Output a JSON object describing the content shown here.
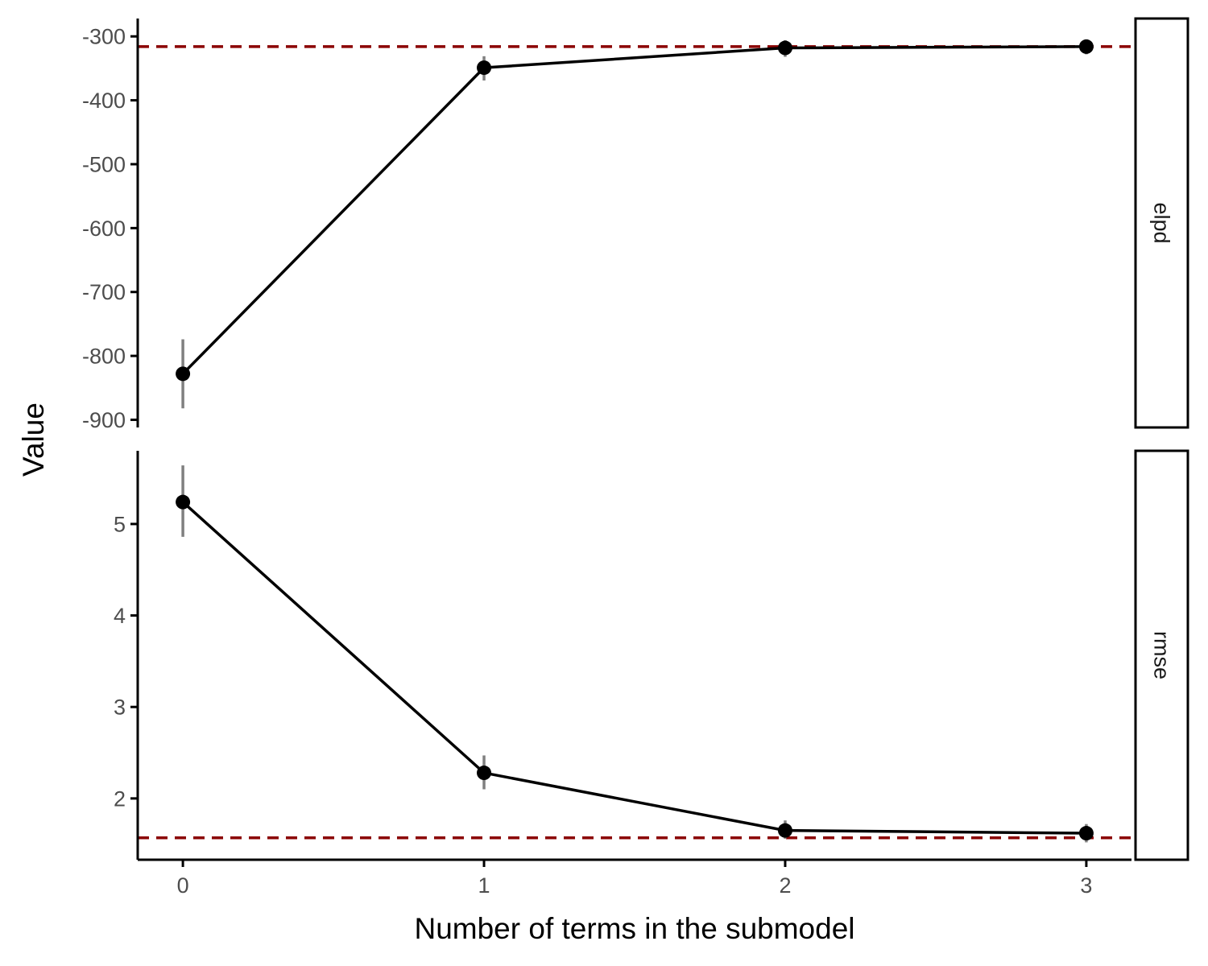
{
  "chart_data": {
    "type": "line",
    "xlabel": "Number of terms in the submodel",
    "ylabel": "Value",
    "x": [
      0,
      1,
      2,
      3
    ],
    "x_ticks": [
      "0",
      "1",
      "2",
      "3"
    ],
    "xlim": [
      -0.15,
      3.15
    ],
    "grid": false,
    "colors": {
      "line": "#000000",
      "point": "#000000",
      "errorbar": "#808080",
      "reference": "#8b0000"
    },
    "panels": [
      {
        "strip": "elpd",
        "values": [
          -828,
          -349,
          -318,
          -316
        ],
        "lower": [
          -882,
          -369,
          -332,
          -328
        ],
        "upper": [
          -774,
          -331,
          -306,
          -306
        ],
        "reference": -316,
        "ylim": [
          -912,
          -272
        ],
        "y_ticks": [
          -900,
          -800,
          -700,
          -600,
          -500,
          -400,
          -300
        ],
        "y_tick_labels": [
          "-900",
          "-800",
          "-700",
          "-600",
          "-500",
          "-400",
          "-300"
        ]
      },
      {
        "strip": "rmse",
        "values": [
          5.24,
          2.28,
          1.65,
          1.62
        ],
        "lower": [
          4.86,
          2.1,
          1.56,
          1.52
        ],
        "upper": [
          5.64,
          2.47,
          1.76,
          1.72
        ],
        "reference": 1.57,
        "ylim": [
          1.33,
          5.8
        ],
        "y_ticks": [
          2,
          3,
          4,
          5
        ],
        "y_tick_labels": [
          "2",
          "3",
          "4",
          "5"
        ]
      }
    ]
  }
}
